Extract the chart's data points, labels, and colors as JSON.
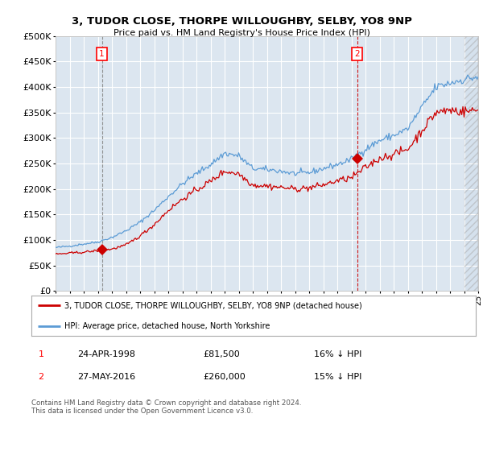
{
  "title": "3, TUDOR CLOSE, THORPE WILLOUGHBY, SELBY, YO8 9NP",
  "subtitle": "Price paid vs. HM Land Registry's House Price Index (HPI)",
  "background_color": "#ffffff",
  "plot_bg_color": "#dce6f0",
  "grid_color": "#ffffff",
  "hpi_color": "#5b9bd5",
  "price_color": "#cc0000",
  "sale1_date": "24-APR-1998",
  "sale1_price": "£81,500",
  "sale1_hpi": "16% ↓ HPI",
  "sale2_date": "27-MAY-2016",
  "sale2_price": "£260,000",
  "sale2_hpi": "15% ↓ HPI",
  "legend_line1": "3, TUDOR CLOSE, THORPE WILLOUGHBY, SELBY, YO8 9NP (detached house)",
  "legend_line2": "HPI: Average price, detached house, North Yorkshire",
  "footnote": "Contains HM Land Registry data © Crown copyright and database right 2024.\nThis data is licensed under the Open Government Licence v3.0.",
  "sale1_x": 1998.29,
  "sale1_y": 81500,
  "sale2_x": 2016.41,
  "sale2_y": 260000,
  "xmin": 1995.0,
  "xmax": 2025.0,
  "ylim": [
    0,
    500000
  ],
  "yticks": [
    0,
    50000,
    100000,
    150000,
    200000,
    250000,
    300000,
    350000,
    400000,
    450000,
    500000
  ],
  "hatch_start": 2024.0,
  "hatch_end": 2025.0
}
